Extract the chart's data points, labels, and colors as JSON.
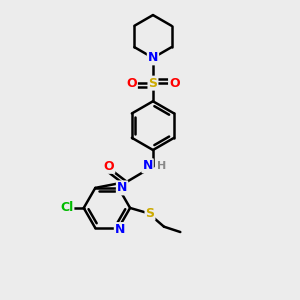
{
  "bg_color": "#ececec",
  "bond_color": "#000000",
  "bond_width": 1.8,
  "atom_colors": {
    "N": "#0000ff",
    "O": "#ff0000",
    "S_sul": "#ccaa00",
    "S_et": "#ccaa00",
    "Cl": "#00bb00",
    "H": "#888888"
  },
  "font_size": 9,
  "fig_width": 3.0,
  "fig_height": 3.0,
  "dpi": 100
}
